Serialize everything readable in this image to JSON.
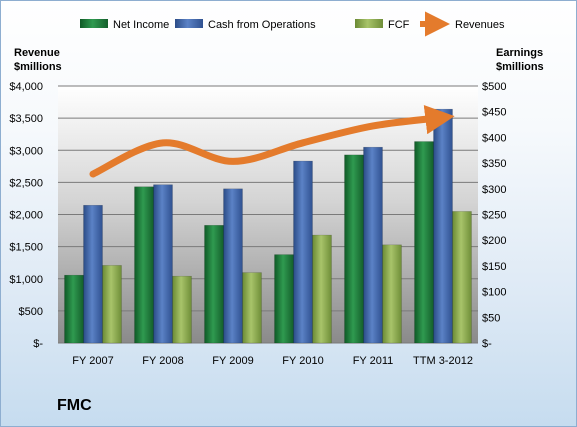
{
  "chart_data": {
    "type": "bar",
    "categories": [
      "FY 2007",
      "FY 2008",
      "FY 2009",
      "FY 2010",
      "FY 2011",
      "TTM 3-2012"
    ],
    "series": [
      {
        "name": "Net Income",
        "type": "bar",
        "axis": "right",
        "values": [
          132,
          304,
          229,
          172,
          366,
          392
        ],
        "color": "#1d7a3a"
      },
      {
        "name": "Cash from Operations",
        "type": "bar",
        "axis": "right",
        "values": [
          268,
          308,
          300,
          354,
          381,
          455
        ],
        "color": "#3f64a8"
      },
      {
        "name": "FCF",
        "type": "bar",
        "axis": "right",
        "values": [
          151,
          130,
          137,
          210,
          191,
          256
        ],
        "color": "#8aa94a"
      },
      {
        "name": "Revenues",
        "type": "line",
        "axis": "left",
        "values": [
          2630,
          3115,
          2826,
          3116,
          3378,
          3510
        ],
        "color": "#e47b2c"
      }
    ],
    "left_axis": {
      "title_lines": [
        "Revenue",
        "$millions"
      ],
      "ylim": [
        0,
        4000
      ],
      "tick_labels": [
        "$-",
        "$500",
        "$1,000",
        "$1,500",
        "$2,000",
        "$2,500",
        "$3,000",
        "$3,500",
        "$4,000"
      ]
    },
    "right_axis": {
      "title_lines": [
        "Earnings",
        "$millions"
      ],
      "ylim": [
        0,
        500
      ],
      "tick_labels": [
        "$-",
        "$50",
        "$100",
        "$150",
        "$200",
        "$250",
        "$300",
        "$350",
        "$400",
        "$450",
        "$500"
      ]
    },
    "company_label": "FMC",
    "grid": true,
    "legend_position": "top"
  }
}
